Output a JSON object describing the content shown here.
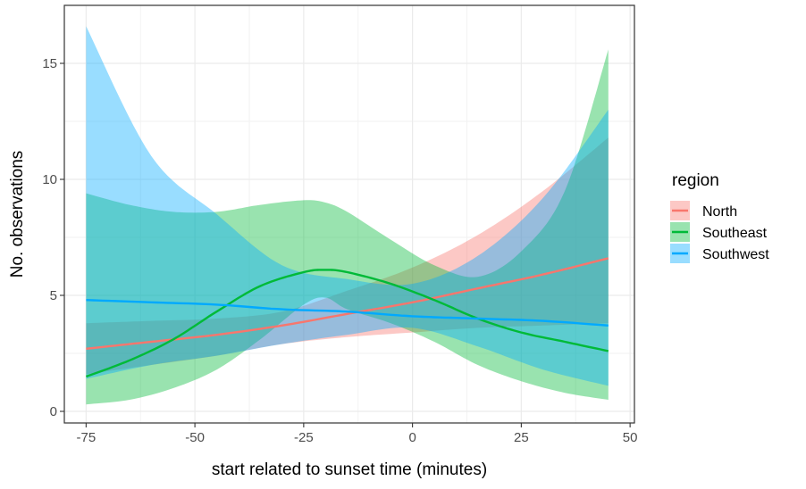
{
  "chart_data": {
    "type": "line",
    "xlabel": "start related to sunset time (minutes)",
    "ylabel": "No. observations",
    "xlim": [
      -80,
      51
    ],
    "ylim": [
      -0.5,
      17.5
    ],
    "xticks": [
      -75,
      -50,
      -25,
      0,
      25,
      50
    ],
    "xtick_labels": [
      "-75",
      "-50",
      "-25",
      "0",
      "25",
      "50"
    ],
    "yticks": [
      0,
      5,
      10,
      15
    ],
    "ytick_labels": [
      "0",
      "5",
      "10",
      "15"
    ],
    "grid": true,
    "legend": {
      "title": "region",
      "position": "right"
    },
    "series": [
      {
        "name": "North",
        "color": "#F8766D",
        "x": [
          -75,
          -60,
          -45,
          -30,
          -15,
          0,
          15,
          30,
          45
        ],
        "y": [
          2.7,
          3.0,
          3.3,
          3.7,
          4.2,
          4.7,
          5.3,
          5.9,
          6.6
        ],
        "lower": [
          1.6,
          2.0,
          2.4,
          2.9,
          3.2,
          3.4,
          3.6,
          3.7,
          3.8
        ],
        "upper": [
          3.8,
          3.9,
          4.0,
          4.3,
          5.2,
          6.2,
          7.6,
          9.5,
          11.8
        ]
      },
      {
        "name": "Southeast",
        "color": "#00BA38",
        "x": [
          -75,
          -65,
          -55,
          -45,
          -35,
          -25,
          -20,
          -15,
          -5,
          5,
          15,
          25,
          35,
          45
        ],
        "y": [
          1.5,
          2.2,
          3.1,
          4.3,
          5.4,
          6.0,
          6.1,
          6.0,
          5.5,
          4.8,
          4.0,
          3.4,
          3.0,
          2.6
        ],
        "lower": [
          0.3,
          0.5,
          1.0,
          1.8,
          3.1,
          4.6,
          4.9,
          4.4,
          3.8,
          3.0,
          2.0,
          1.3,
          0.8,
          0.5
        ],
        "upper": [
          9.4,
          8.9,
          8.6,
          8.6,
          8.9,
          9.1,
          9.0,
          8.6,
          7.4,
          6.3,
          5.8,
          6.9,
          9.5,
          15.6
        ]
      },
      {
        "name": "Southwest",
        "color": "#00A9FF",
        "x": [
          -75,
          -60,
          -45,
          -30,
          -15,
          0,
          15,
          30,
          45
        ],
        "y": [
          4.8,
          4.7,
          4.6,
          4.4,
          4.3,
          4.1,
          4.0,
          3.9,
          3.7
        ],
        "lower": [
          1.4,
          2.0,
          2.4,
          2.9,
          3.3,
          3.6,
          2.8,
          1.8,
          1.1
        ],
        "upper": [
          16.6,
          11.0,
          8.5,
          6.3,
          5.7,
          5.5,
          6.7,
          9.2,
          13.0
        ]
      }
    ]
  }
}
